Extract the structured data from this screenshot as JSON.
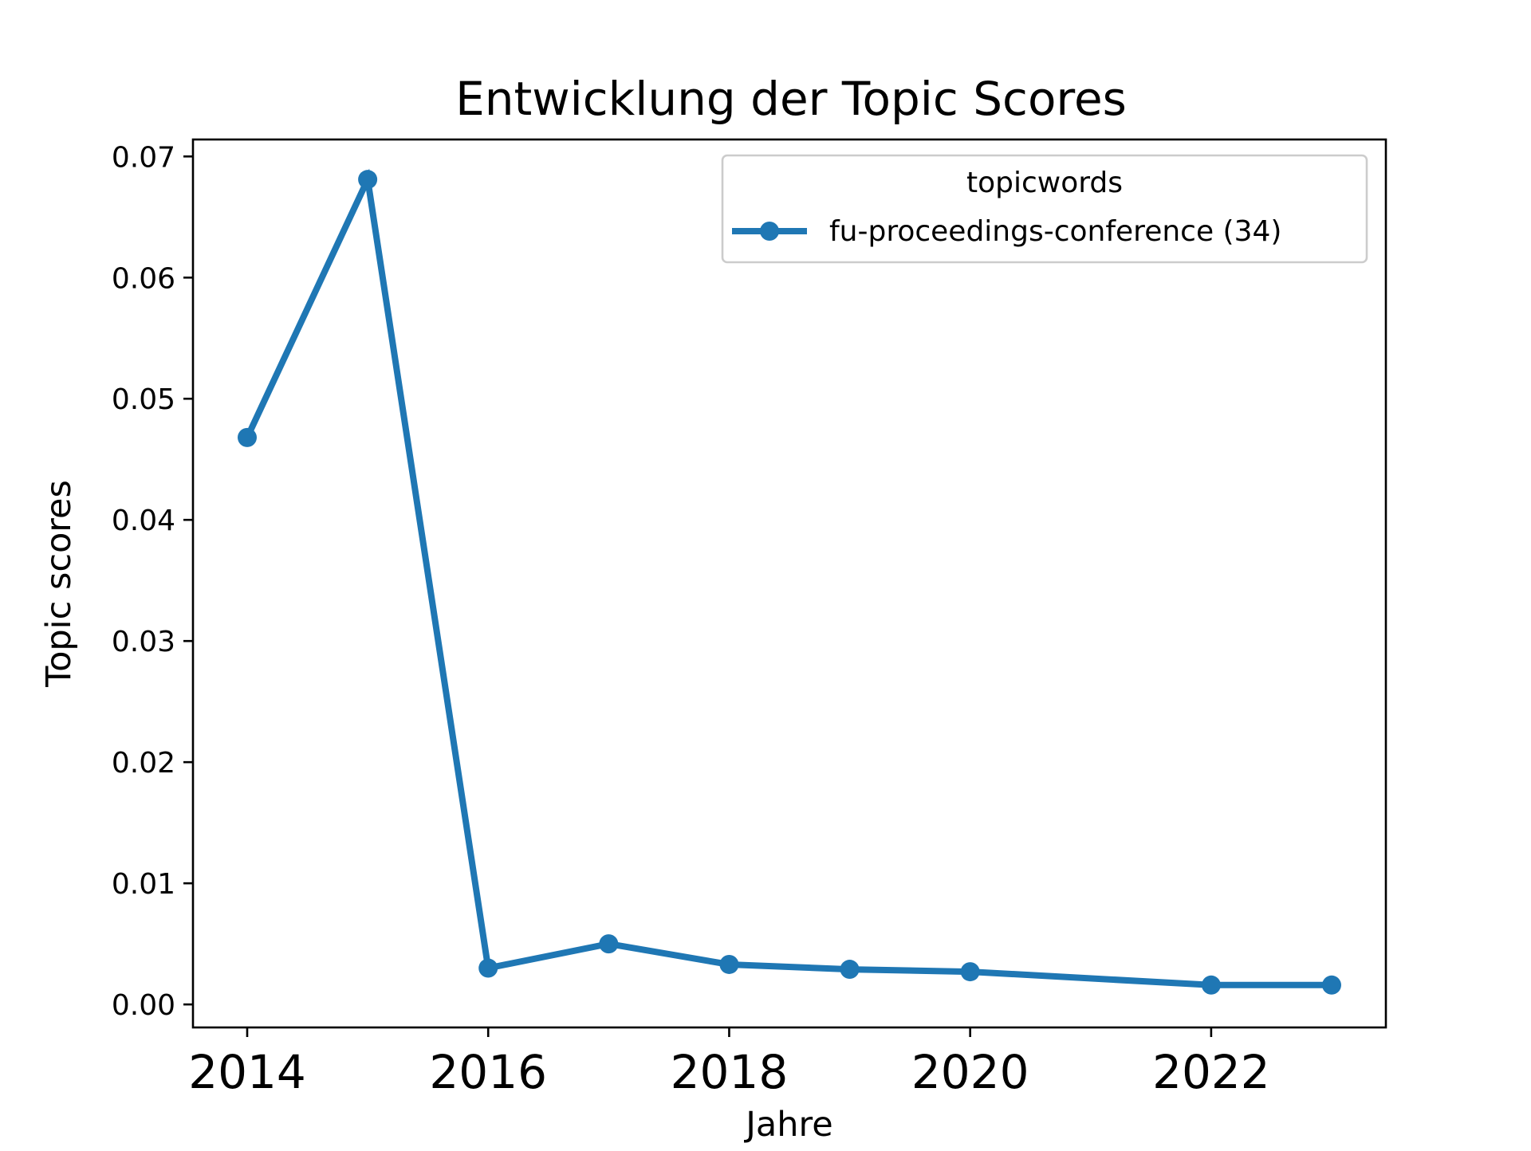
{
  "chart_data": {
    "type": "line",
    "title": "Entwicklung der Topic Scores",
    "xlabel": "Jahre",
    "ylabel": "Topic scores",
    "xlim": [
      2013.55,
      2023.45
    ],
    "ylim": [
      -0.0019,
      0.0714
    ],
    "x_ticks": [
      "2014",
      "2016",
      "2018",
      "2020",
      "2022"
    ],
    "y_ticks": [
      "0.00",
      "0.01",
      "0.02",
      "0.03",
      "0.04",
      "0.05",
      "0.06",
      "0.07"
    ],
    "grid": false,
    "legend": {
      "title": "topicwords",
      "placement": "top-right"
    },
    "series": [
      {
        "name": "fu-proceedings-conference (34)",
        "color": "#1f77b4",
        "x": [
          2014,
          2015,
          2016,
          2017,
          2018,
          2019,
          2020,
          2022,
          2023
        ],
        "y": [
          0.0468,
          0.0681,
          0.003,
          0.005,
          0.0033,
          0.0029,
          0.0027,
          0.0016,
          0.0016
        ]
      }
    ]
  }
}
